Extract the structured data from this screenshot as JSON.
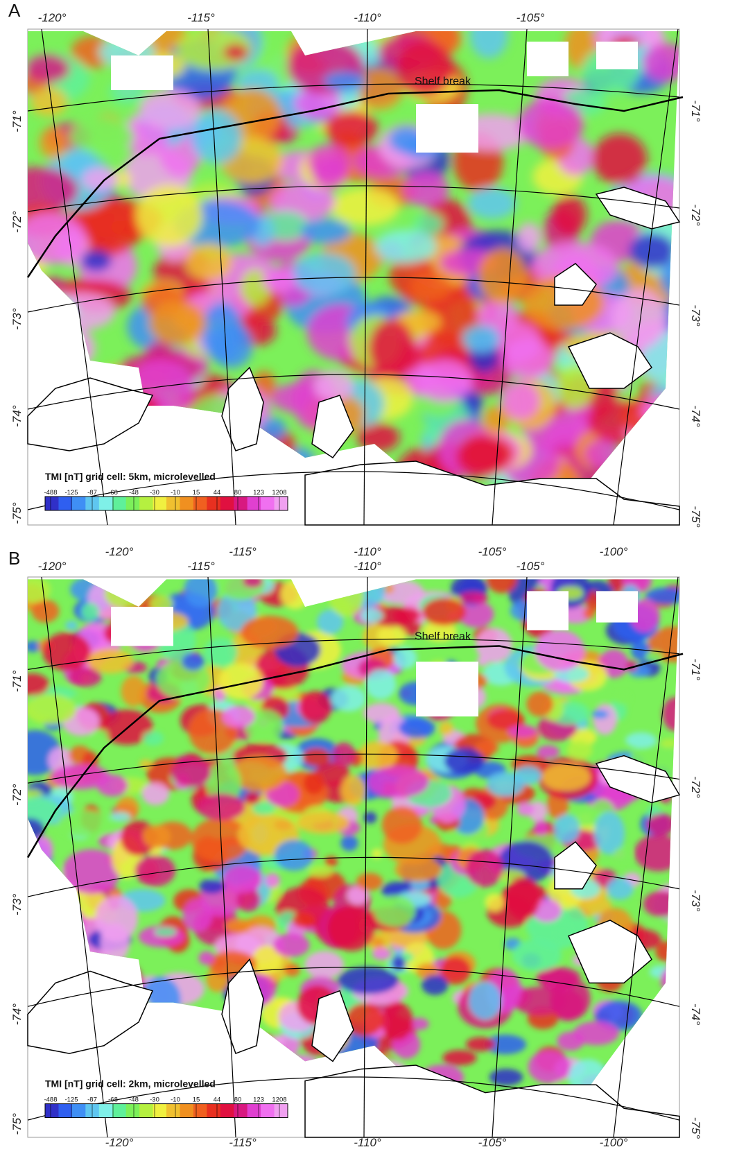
{
  "panels": [
    {
      "label": "A",
      "top_longitudes": [
        "-120°",
        "-115°",
        "-110°",
        "-105°"
      ],
      "bottom_longitudes": [
        "-120°",
        "-115°",
        "-110°",
        "-105°",
        "-100°"
      ],
      "left_latitudes": [
        "-71°",
        "-72°",
        "-73°",
        "-74°",
        "-75°"
      ],
      "right_latitudes": [
        "-71°",
        "-72°",
        "-73°",
        "-74°",
        "-75°"
      ],
      "shelf_label": "Shelf break",
      "legend": {
        "title": "TMI [nT] grid cell: 5km, microlevelled",
        "ticks": [
          -488,
          -125,
          -87,
          -68,
          -48,
          -30,
          -10,
          15,
          44,
          80,
          123,
          1208
        ],
        "colors": [
          "#3030c8",
          "#2f5ff0",
          "#3f8ff5",
          "#5fc6f0",
          "#7ff0e8",
          "#5ff09a",
          "#7cf05a",
          "#b5f040",
          "#f0f040",
          "#f0c030",
          "#f09020",
          "#f06020",
          "#e83020",
          "#e01040",
          "#d81880",
          "#e040d0",
          "#f070f0",
          "#f0a0f0"
        ]
      }
    },
    {
      "label": "B",
      "top_longitudes": [
        "-120°",
        "-115°",
        "-110°",
        "-105°"
      ],
      "bottom_longitudes": [
        "-120°",
        "-115°",
        "-110°",
        "-105°",
        "-100°"
      ],
      "left_latitudes": [
        "-71°",
        "-72°",
        "-73°",
        "-74°",
        "-75°"
      ],
      "right_latitudes": [
        "-71°",
        "-72°",
        "-73°",
        "-74°",
        "-75°"
      ],
      "shelf_label": "Shelf break",
      "legend": {
        "title": "TMI [nT] grid cell: 2km, microlevelled",
        "ticks": [
          -488,
          -125,
          -87,
          -68,
          -48,
          -30,
          -10,
          15,
          44,
          80,
          123,
          1208
        ],
        "colors": [
          "#3030c8",
          "#2f5ff0",
          "#3f8ff5",
          "#5fc6f0",
          "#7ff0e8",
          "#5ff09a",
          "#7cf05a",
          "#b5f040",
          "#f0f040",
          "#f0c030",
          "#f09020",
          "#f06020",
          "#e83020",
          "#e01040",
          "#d81880",
          "#e040d0",
          "#f070f0",
          "#f0a0f0"
        ]
      }
    }
  ]
}
